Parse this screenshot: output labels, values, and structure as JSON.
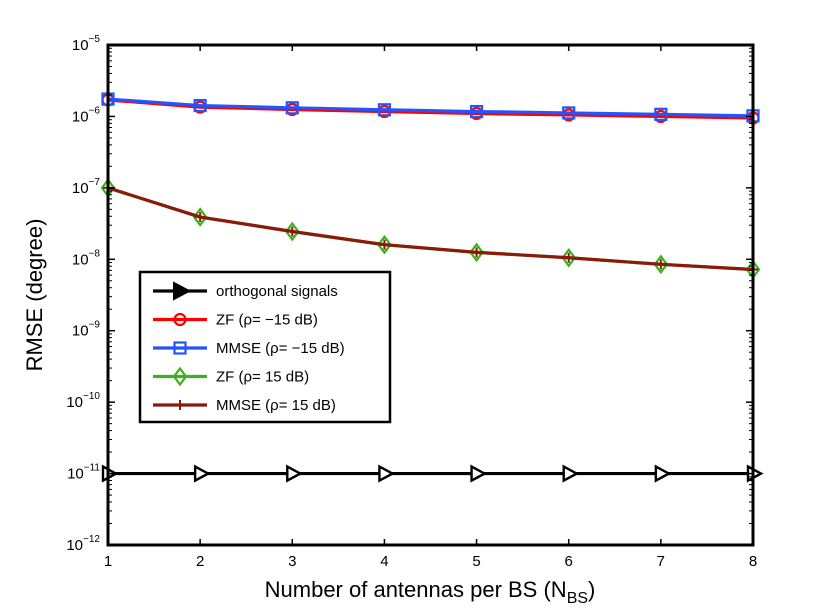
{
  "chart_data": {
    "type": "line",
    "title": "",
    "xlabel": "Number of antennas per BS (N",
    "xlabel_sub": "BS",
    "xlabel_close": ")",
    "ylabel": "RMSE (degree)",
    "x": [
      1,
      2,
      3,
      4,
      5,
      6,
      7,
      8
    ],
    "xlim": [
      1,
      8
    ],
    "ylim": [
      1e-12,
      1e-05
    ],
    "yscale": "log",
    "x_tick_labels": [
      "1",
      "2",
      "3",
      "4",
      "5",
      "6",
      "7",
      "8"
    ],
    "y_ticks": [
      {
        "base": "10",
        "exp": "−12",
        "value": -12
      },
      {
        "base": "10",
        "exp": "−11",
        "value": -11
      },
      {
        "base": "10",
        "exp": "−10",
        "value": -10
      },
      {
        "base": "10",
        "exp": "−9",
        "value": -9
      },
      {
        "base": "10",
        "exp": "−8",
        "value": -8
      },
      {
        "base": "10",
        "exp": "−7",
        "value": -7
      },
      {
        "base": "10",
        "exp": "−6",
        "value": -6
      },
      {
        "base": "10",
        "exp": "−5",
        "value": -5
      }
    ],
    "grid": false,
    "legend_position": "center-left",
    "series": [
      {
        "name": "orthogonal signals",
        "color": "#000000",
        "marker": "triangle-right",
        "values": [
          1e-11,
          1e-11,
          1e-11,
          1e-11,
          1e-11,
          1e-11,
          1e-11,
          1e-11
        ]
      },
      {
        "name": "ZF (ρ= −15 dB)",
        "color": "#ff0000",
        "marker": "circle",
        "values": [
          1.7e-06,
          1.35e-06,
          1.25e-06,
          1.17e-06,
          1.1e-06,
          1.05e-06,
          1e-06,
          9.5e-07
        ]
      },
      {
        "name": "MMSE (ρ= −15 dB)",
        "color": "#2255ff",
        "marker": "square",
        "values": [
          1.75e-06,
          1.42e-06,
          1.32e-06,
          1.24e-06,
          1.17e-06,
          1.12e-06,
          1.07e-06,
          1.02e-06
        ]
      },
      {
        "name": "ZF (ρ= 15 dB)",
        "color": "#3cb11e",
        "marker": "diamond",
        "values": [
          1e-07,
          3.9e-08,
          2.45e-08,
          1.6e-08,
          1.25e-08,
          1.05e-08,
          8.5e-09,
          7.2e-09
        ]
      },
      {
        "name": "MMSE (ρ= 15 dB)",
        "color": "#8b1a0a",
        "marker": "plus",
        "values": [
          1e-07,
          3.9e-08,
          2.45e-08,
          1.6e-08,
          1.25e-08,
          1.05e-08,
          8.5e-09,
          7.2e-09
        ]
      }
    ]
  }
}
